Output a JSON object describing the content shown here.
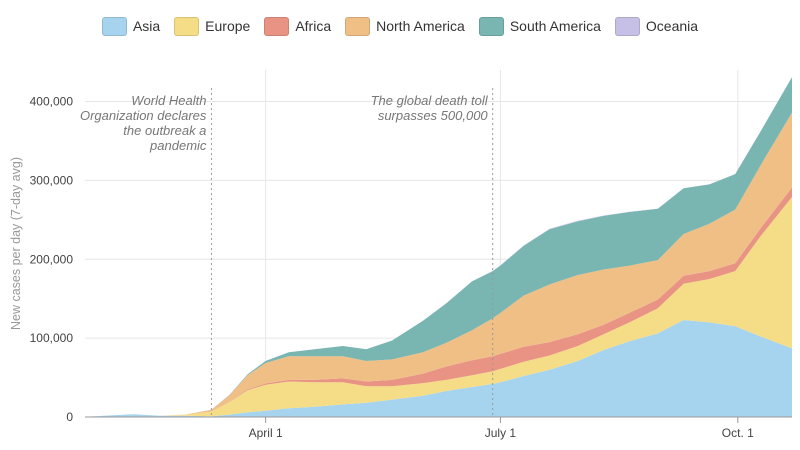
{
  "chart_data": {
    "type": "area",
    "stacked": true,
    "ylabel": "New cases per day (7-day avg)",
    "ylim": [
      0,
      440000
    ],
    "yticks": [
      0,
      100000,
      200000,
      300000,
      400000
    ],
    "ytick_labels": [
      "0",
      "100,000",
      "200,000",
      "300,000",
      "400,000"
    ],
    "x_start": "2020-01-22",
    "x_end": "2020-10-22",
    "xticks": [
      {
        "date": "2020-04-01",
        "label": "April 1"
      },
      {
        "date": "2020-07-01",
        "label": "July 1"
      },
      {
        "date": "2020-10-01",
        "label": "Oct. 1"
      }
    ],
    "grid": "vertical-and-horizontal",
    "legend_position": "top-center",
    "x": [
      "2020-01-22",
      "2020-02-01",
      "2020-02-10",
      "2020-02-20",
      "2020-03-01",
      "2020-03-11",
      "2020-03-18",
      "2020-03-25",
      "2020-04-01",
      "2020-04-10",
      "2020-04-20",
      "2020-05-01",
      "2020-05-10",
      "2020-05-20",
      "2020-06-01",
      "2020-06-10",
      "2020-06-20",
      "2020-06-28",
      "2020-07-01",
      "2020-07-10",
      "2020-07-20",
      "2020-07-31",
      "2020-08-10",
      "2020-08-20",
      "2020-08-31",
      "2020-09-10",
      "2020-09-20",
      "2020-09-30",
      "2020-10-10",
      "2020-10-22"
    ],
    "series": [
      {
        "name": "Asia",
        "color": "#a6d4ee",
        "values": [
          300,
          2000,
          3500,
          1500,
          1500,
          1000,
          3000,
          6000,
          8000,
          11000,
          13000,
          16000,
          18000,
          22000,
          27000,
          33000,
          38000,
          42000,
          44000,
          52000,
          60000,
          71000,
          85000,
          96000,
          106000,
          123000,
          120000,
          115000,
          102000,
          87000
        ]
      },
      {
        "name": "Europe",
        "color": "#f5dd87",
        "values": [
          0,
          0,
          0,
          100,
          1500,
          6000,
          16000,
          28000,
          33000,
          34000,
          31000,
          28000,
          21000,
          17000,
          16000,
          14000,
          15000,
          16000,
          17000,
          18000,
          18000,
          19000,
          20000,
          24000,
          32000,
          46000,
          55000,
          70000,
          128000,
          192000
        ]
      },
      {
        "name": "Africa",
        "color": "#e99384",
        "values": [
          0,
          0,
          0,
          0,
          0,
          200,
          500,
          1000,
          1500,
          2000,
          3000,
          5000,
          6000,
          8000,
          12000,
          17000,
          19000,
          19000,
          19000,
          19000,
          17000,
          15000,
          12000,
          12000,
          11000,
          10000,
          10000,
          10000,
          10000,
          12000
        ]
      },
      {
        "name": "North America",
        "color": "#efbf86",
        "values": [
          0,
          0,
          0,
          0,
          200,
          2000,
          8000,
          18000,
          26000,
          30000,
          30000,
          28000,
          26000,
          26000,
          27000,
          30000,
          38000,
          48000,
          52000,
          65000,
          73000,
          75000,
          70000,
          60000,
          50000,
          53000,
          60000,
          68000,
          80000,
          95000
        ]
      },
      {
        "name": "South America",
        "color": "#79b6b1",
        "values": [
          0,
          0,
          0,
          0,
          0,
          100,
          500,
          1000,
          2500,
          5000,
          9000,
          13000,
          15000,
          24000,
          40000,
          50000,
          62000,
          60000,
          60000,
          63000,
          70000,
          68000,
          68000,
          68000,
          65000,
          58000,
          50000,
          45000,
          43000,
          45000
        ]
      },
      {
        "name": "Oceania",
        "color": "#c7c0e6",
        "values": [
          0,
          0,
          0,
          0,
          0,
          50,
          200,
          400,
          400,
          200,
          100,
          50,
          30,
          30,
          50,
          100,
          200,
          300,
          300,
          500,
          600,
          800,
          500,
          300,
          200,
          100,
          100,
          100,
          100,
          100
        ]
      }
    ],
    "annotations": [
      {
        "date": "2020-03-11",
        "lines": [
          "World Health",
          "Organization declares",
          "the outbreak a",
          "pandemic"
        ]
      },
      {
        "date": "2020-06-28",
        "lines": [
          "The global death toll",
          "surpasses 500,000"
        ]
      }
    ]
  }
}
